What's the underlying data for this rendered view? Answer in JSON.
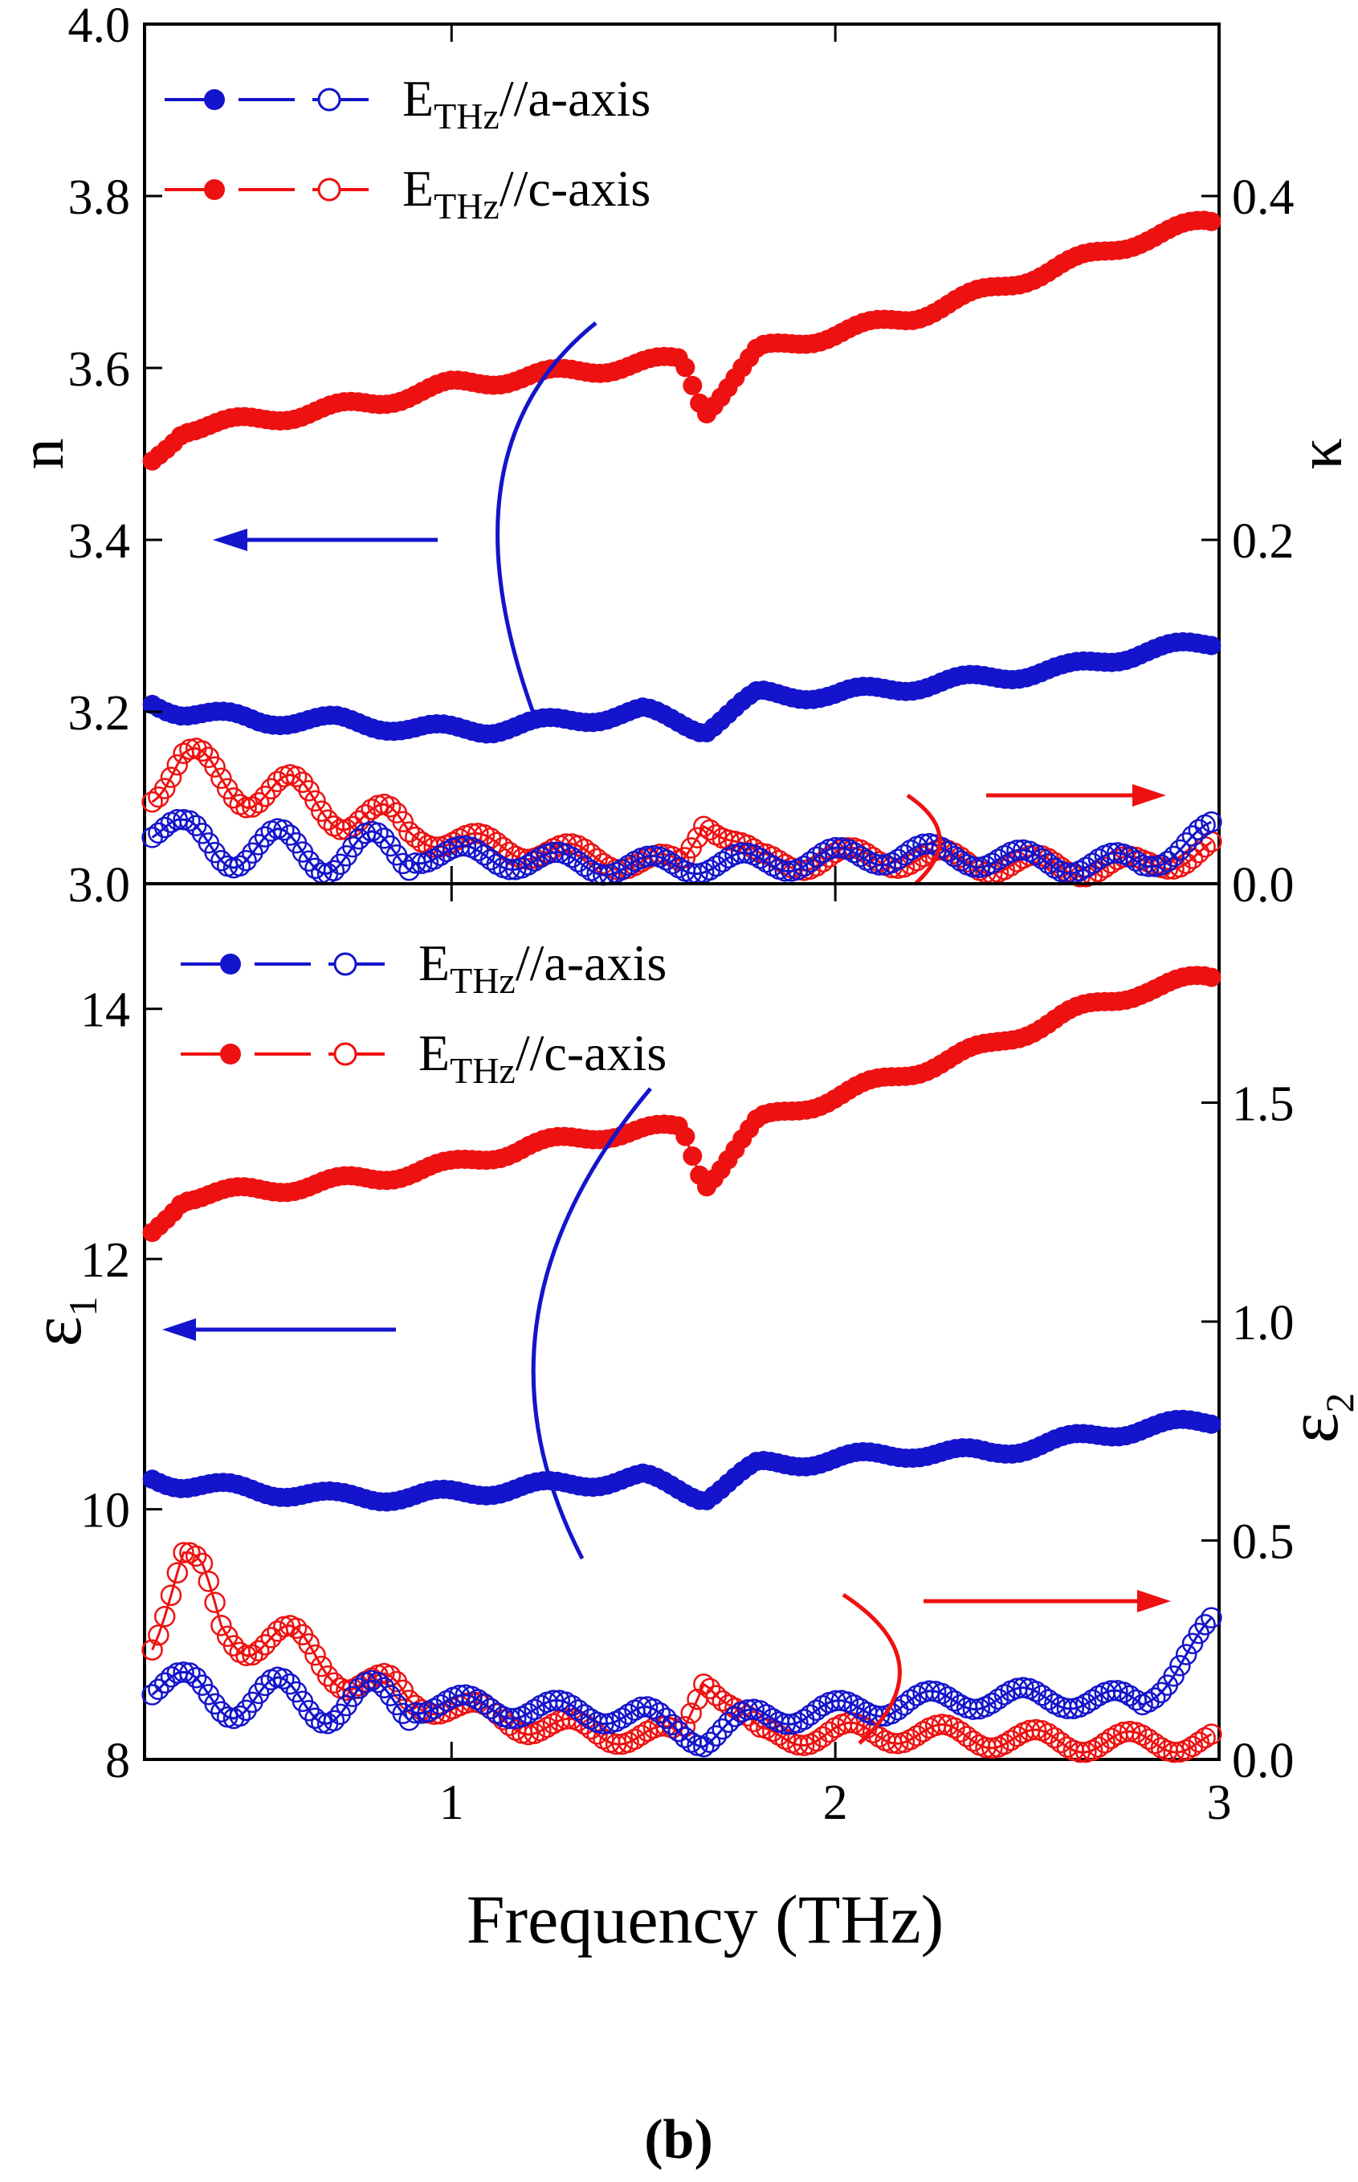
{
  "figure_label": "(b)",
  "xlabel": "Frequency (THz)",
  "colors": {
    "a_axis": "#1414cc",
    "c_axis": "#ee1111",
    "axes": "#000000"
  },
  "chart_data": [
    {
      "type": "scatter",
      "panel": "top",
      "ylabel_left": "n",
      "ylabel_right": "κ",
      "xlim": [
        0.2,
        3.0
      ],
      "ylim_left": [
        3.0,
        4.0
      ],
      "ylim_right": [
        0.0,
        0.5
      ],
      "xticks": [
        1,
        2,
        3
      ],
      "yticks_left": [
        "3.0",
        "3.2",
        "3.4",
        "3.6",
        "3.8",
        "4.0"
      ],
      "yticks_right": [
        "0.0",
        "0.2",
        "0.4"
      ],
      "legend": [
        {
          "label_main": "E",
          "label_sub": "THz",
          "label_rest": "//a-axis",
          "color": "#1414cc"
        },
        {
          "label_main": "E",
          "label_sub": "THz",
          "label_rest": "//c-axis",
          "color": "#ee1111"
        }
      ],
      "series": [
        {
          "name": "n, E//c-axis",
          "axis": "left",
          "filled": true,
          "color": "#ee1111",
          "x": [
            0.22,
            0.3,
            0.5,
            0.8,
            1.0,
            1.2,
            1.4,
            1.6,
            1.66,
            1.8,
            2.0,
            2.2,
            2.4,
            2.6,
            2.8,
            2.97
          ],
          "y": [
            3.49,
            3.53,
            3.54,
            3.56,
            3.58,
            3.59,
            3.6,
            3.61,
            3.55,
            3.62,
            3.64,
            3.66,
            3.69,
            3.72,
            3.75,
            3.77
          ]
        },
        {
          "name": "n, E//a-axis",
          "axis": "left",
          "filled": true,
          "color": "#1414cc",
          "x": [
            0.22,
            0.3,
            0.5,
            0.7,
            0.9,
            1.1,
            1.3,
            1.5,
            1.66,
            1.8,
            2.0,
            2.2,
            2.4,
            2.6,
            2.8,
            2.98
          ],
          "y": [
            3.21,
            3.2,
            3.19,
            3.19,
            3.18,
            3.18,
            3.19,
            3.2,
            3.18,
            3.22,
            3.22,
            3.23,
            3.24,
            3.25,
            3.27,
            3.28
          ]
        },
        {
          "name": "κ, E//c-axis",
          "axis": "right",
          "filled": false,
          "color": "#ee1111",
          "x": [
            0.22,
            0.3,
            0.4,
            0.5,
            0.6,
            0.7,
            0.8,
            1.0,
            1.2,
            1.4,
            1.6,
            1.66,
            1.8,
            2.0,
            2.2,
            2.4,
            2.6,
            2.8,
            2.98
          ],
          "y": [
            0.06,
            0.07,
            0.06,
            0.055,
            0.05,
            0.045,
            0.035,
            0.025,
            0.02,
            0.015,
            0.01,
            0.04,
            0.012,
            0.015,
            0.015,
            0.012,
            0.01,
            0.01,
            0.02
          ]
        },
        {
          "name": "κ, E//a-axis",
          "axis": "right",
          "filled": false,
          "color": "#1414cc",
          "x": [
            0.22,
            0.3,
            0.5,
            0.7,
            0.9,
            1.1,
            1.3,
            1.5,
            1.66,
            1.8,
            2.0,
            2.2,
            2.4,
            2.6,
            2.8,
            2.98
          ],
          "y": [
            0.035,
            0.025,
            0.02,
            0.018,
            0.018,
            0.015,
            0.012,
            0.01,
            0.012,
            0.012,
            0.015,
            0.018,
            0.015,
            0.012,
            0.012,
            0.03
          ]
        }
      ]
    },
    {
      "type": "scatter",
      "panel": "bottom",
      "ylabel_left": "ε",
      "ylabel_left_sub": "1",
      "ylabel_right": "ε",
      "ylabel_right_sub": "2",
      "xlim": [
        0.2,
        3.0
      ],
      "ylim_left": [
        8.0,
        15.0
      ],
      "ylim_right": [
        0.0,
        2.0
      ],
      "xticks": [
        1,
        2,
        3
      ],
      "yticks_left": [
        "8",
        "10",
        "12",
        "14"
      ],
      "yticks_right": [
        "0.0",
        "0.5",
        "1.0",
        "1.5"
      ],
      "legend": [
        {
          "label_main": "E",
          "label_sub": "THz",
          "label_rest": "//a-axis",
          "color": "#1414cc"
        },
        {
          "label_main": "E",
          "label_sub": "THz",
          "label_rest": "//c-axis",
          "color": "#ee1111"
        }
      ],
      "series": [
        {
          "name": "ε1, E//c-axis",
          "axis": "left",
          "filled": true,
          "color": "#ee1111",
          "x": [
            0.22,
            0.3,
            0.5,
            0.8,
            1.0,
            1.2,
            1.4,
            1.6,
            1.66,
            1.8,
            2.0,
            2.2,
            2.4,
            2.6,
            2.8,
            2.97
          ],
          "y": [
            12.2,
            12.5,
            12.55,
            12.65,
            12.75,
            12.9,
            13.0,
            13.05,
            12.6,
            13.1,
            13.3,
            13.5,
            13.7,
            13.95,
            14.15,
            14.25
          ]
        },
        {
          "name": "ε1, E//a-axis",
          "axis": "left",
          "filled": true,
          "color": "#1414cc",
          "x": [
            0.22,
            0.3,
            0.5,
            0.7,
            0.9,
            1.1,
            1.3,
            1.5,
            1.66,
            1.8,
            2.0,
            2.2,
            2.4,
            2.6,
            2.8,
            2.98
          ],
          "y": [
            10.25,
            10.2,
            10.15,
            10.1,
            10.1,
            10.15,
            10.2,
            10.25,
            10.1,
            10.35,
            10.4,
            10.45,
            10.45,
            10.55,
            10.65,
            10.7
          ]
        },
        {
          "name": "ε2, E//c-axis",
          "axis": "right",
          "filled": false,
          "color": "#ee1111",
          "x": [
            0.22,
            0.3,
            0.35,
            0.4,
            0.5,
            0.6,
            0.7,
            0.8,
            1.0,
            1.2,
            1.4,
            1.6,
            1.66,
            1.8,
            2.0,
            2.2,
            2.4,
            2.6,
            2.8,
            2.98
          ],
          "y": [
            0.3,
            0.45,
            0.4,
            0.3,
            0.28,
            0.25,
            0.22,
            0.15,
            0.12,
            0.08,
            0.06,
            0.05,
            0.2,
            0.05,
            0.06,
            0.06,
            0.05,
            0.04,
            0.04,
            0.04
          ]
        },
        {
          "name": "ε2, E//a-axis",
          "axis": "right",
          "filled": false,
          "color": "#1414cc",
          "x": [
            0.22,
            0.3,
            0.5,
            0.7,
            0.9,
            1.1,
            1.3,
            1.5,
            1.66,
            1.8,
            2.0,
            2.2,
            2.4,
            2.6,
            2.8,
            2.98
          ],
          "y": [
            0.18,
            0.15,
            0.14,
            0.13,
            0.13,
            0.12,
            0.11,
            0.1,
            0.05,
            0.1,
            0.11,
            0.13,
            0.14,
            0.14,
            0.13,
            0.3
          ]
        }
      ]
    }
  ]
}
